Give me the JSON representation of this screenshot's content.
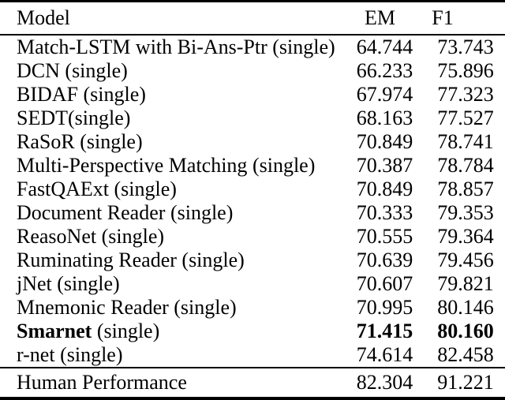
{
  "table": {
    "headers": {
      "model": "Model",
      "em": "EM",
      "f1": "F1"
    },
    "rows": [
      {
        "name": "Match-LSTM with Bi-Ans-Ptr",
        "suffix": " (single)",
        "em": "64.744",
        "f1": "73.743",
        "bold": false
      },
      {
        "name": "DCN",
        "suffix": " (single)",
        "em": "66.233",
        "f1": "75.896",
        "bold": false
      },
      {
        "name": "BIDAF",
        "suffix": " (single)",
        "em": "67.974",
        "f1": "77.323",
        "bold": false
      },
      {
        "name": "SEDT",
        "suffix": "(single)",
        "em": "68.163",
        "f1": "77.527",
        "bold": false
      },
      {
        "name": "RaSoR",
        "suffix": " (single)",
        "em": "70.849",
        "f1": "78.741",
        "bold": false
      },
      {
        "name": "Multi-Perspective Matching",
        "suffix": " (single)",
        "em": "70.387",
        "f1": "78.784",
        "bold": false
      },
      {
        "name": "FastQAExt",
        "suffix": " (single)",
        "em": "70.849",
        "f1": "78.857",
        "bold": false
      },
      {
        "name": "Document Reader",
        "suffix": " (single)",
        "em": "70.333",
        "f1": "79.353",
        "bold": false
      },
      {
        "name": "ReasoNet",
        "suffix": " (single)",
        "em": "70.555",
        "f1": "79.364",
        "bold": false
      },
      {
        "name": "Ruminating Reader",
        "suffix": " (single)",
        "em": "70.639",
        "f1": "79.456",
        "bold": false
      },
      {
        "name": "jNet",
        "suffix": " (single)",
        "em": "70.607",
        "f1": "79.821",
        "bold": false
      },
      {
        "name": "Mnemonic Reader",
        "suffix": " (single)",
        "em": "70.995",
        "f1": "80.146",
        "bold": false
      },
      {
        "name": "Smarnet",
        "suffix": " (single)",
        "em": "71.415",
        "f1": "80.160",
        "bold": true
      },
      {
        "name": "r-net",
        "suffix": " (single)",
        "em": "74.614",
        "f1": "82.458",
        "bold": false
      }
    ],
    "footer": {
      "model": "Human Performance",
      "em": "82.304",
      "f1": "91.221"
    }
  }
}
